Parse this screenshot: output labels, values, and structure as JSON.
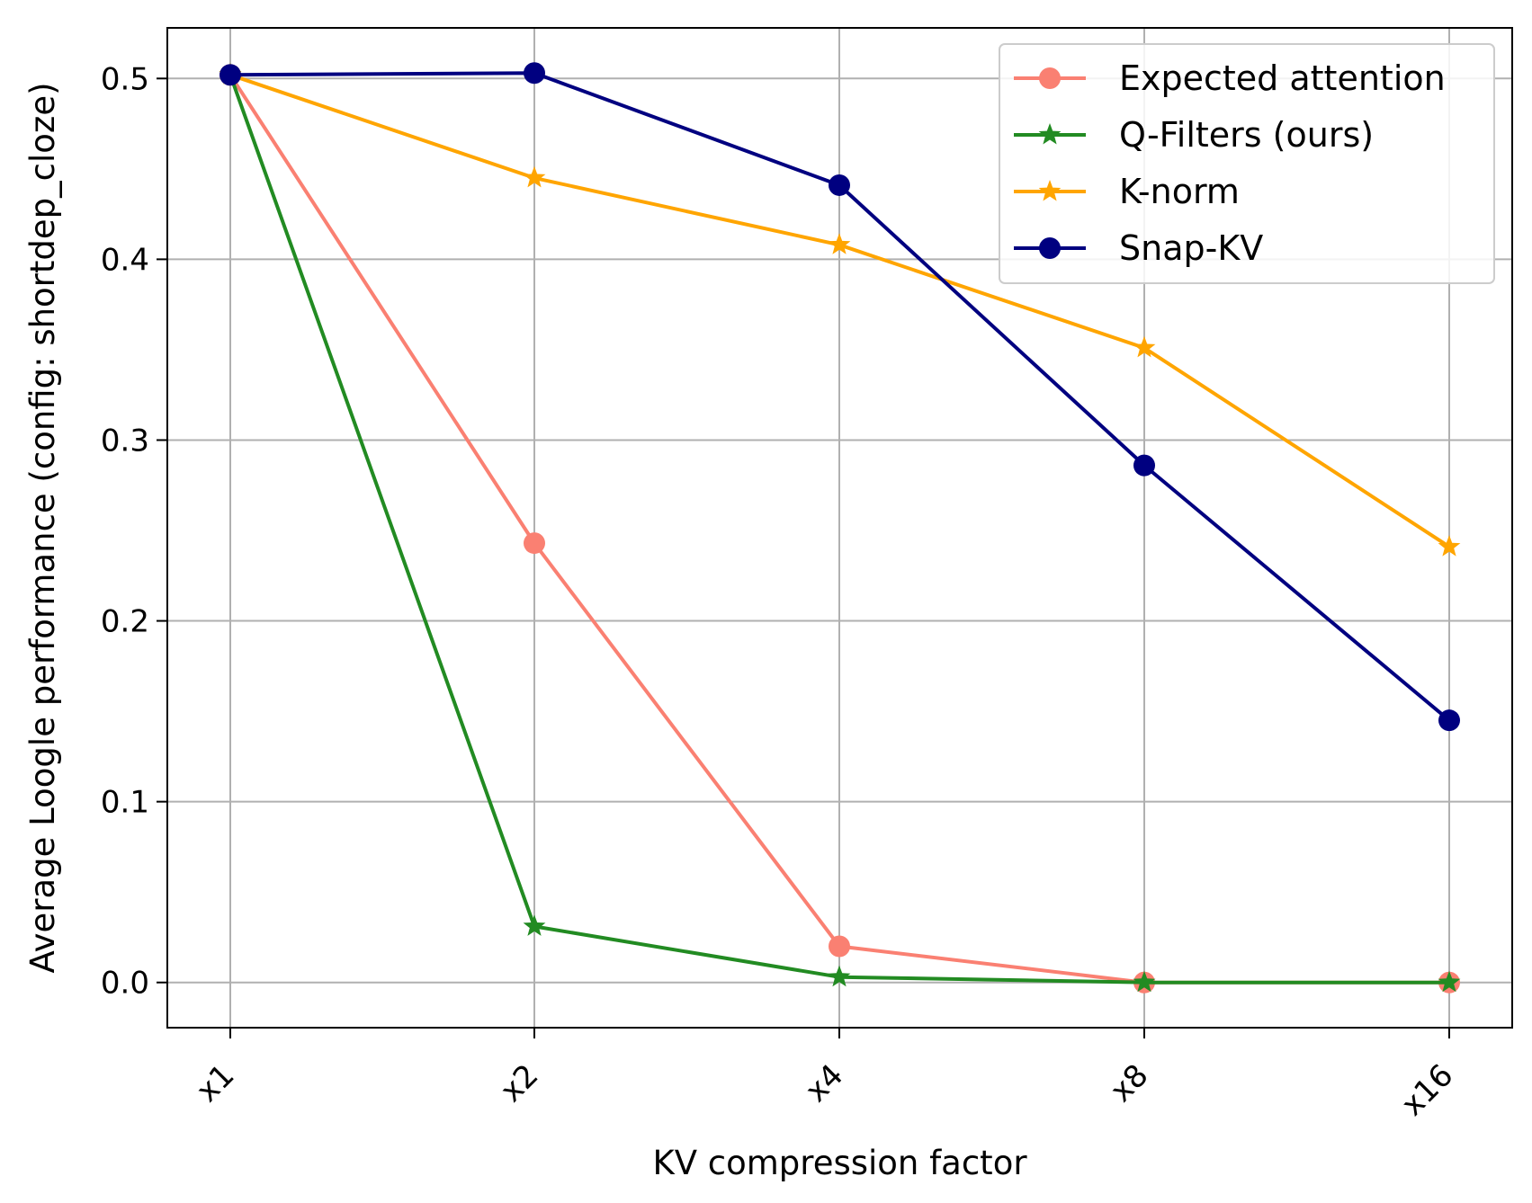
{
  "chart_data": {
    "type": "line",
    "xlabel": "KV compression factor",
    "ylabel": "Average Loogle performance (config: shortdep_cloze)",
    "categories": [
      "x1",
      "x2",
      "x4",
      "x8",
      "x16"
    ],
    "ylim": [
      -0.025,
      0.528
    ],
    "yticks": [
      0.0,
      0.1,
      0.2,
      0.3,
      0.4,
      0.5
    ],
    "ytick_labels": [
      "0.0",
      "0.1",
      "0.2",
      "0.3",
      "0.4",
      "0.5"
    ],
    "grid": true,
    "legend_position": "top-right",
    "series": [
      {
        "name": "Expected attention",
        "color": "#fa8072",
        "marker": "circle",
        "values": [
          0.502,
          0.243,
          0.02,
          0.0,
          0.0
        ]
      },
      {
        "name": "Q-Filters (ours)",
        "color": "#228b22",
        "marker": "star",
        "values": [
          0.502,
          0.031,
          0.003,
          0.0,
          0.0
        ]
      },
      {
        "name": "K-norm",
        "color": "#ffa500",
        "marker": "star",
        "values": [
          0.502,
          0.445,
          0.408,
          0.351,
          0.241
        ]
      },
      {
        "name": "Snap-KV",
        "color": "#000080",
        "marker": "circle",
        "values": [
          0.502,
          0.503,
          0.441,
          0.286,
          0.145
        ]
      }
    ]
  }
}
